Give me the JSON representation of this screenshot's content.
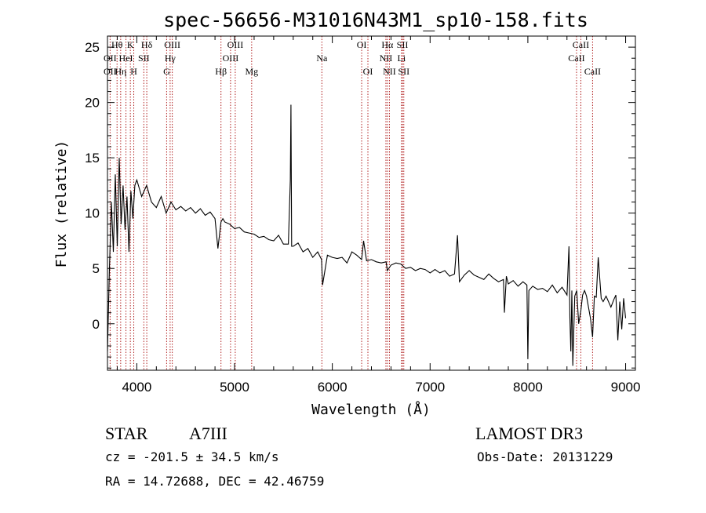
{
  "chart_data": {
    "type": "line",
    "title": "spec-56656-M31016N43M1_sp10-158.fits",
    "xlabel": "Wavelength (Å)",
    "ylabel": "Flux (relative)",
    "xlim": [
      3700,
      9100
    ],
    "ylim": [
      -4.2,
      26.0
    ],
    "xticks": [
      4000,
      5000,
      6000,
      7000,
      8000,
      9000
    ],
    "yticks": [
      0,
      5,
      10,
      15,
      20,
      25
    ],
    "spectrum": {
      "name": "flux",
      "color": "#000000",
      "x": [
        3700,
        3720,
        3740,
        3760,
        3780,
        3800,
        3820,
        3840,
        3860,
        3880,
        3900,
        3920,
        3940,
        3960,
        3980,
        4000,
        4050,
        4100,
        4150,
        4200,
        4250,
        4300,
        4350,
        4400,
        4450,
        4500,
        4550,
        4600,
        4650,
        4700,
        4750,
        4800,
        4830,
        4861,
        4880,
        4900,
        4950,
        5000,
        5050,
        5100,
        5150,
        5200,
        5250,
        5300,
        5350,
        5400,
        5450,
        5500,
        5550,
        5570,
        5577,
        5584,
        5600,
        5650,
        5700,
        5750,
        5800,
        5850,
        5890,
        5900,
        5950,
        6000,
        6050,
        6100,
        6150,
        6200,
        6250,
        6300,
        6320,
        6350,
        6400,
        6450,
        6500,
        6550,
        6563,
        6600,
        6650,
        6700,
        6750,
        6800,
        6850,
        6900,
        6950,
        7000,
        7050,
        7100,
        7150,
        7200,
        7250,
        7280,
        7300,
        7350,
        7400,
        7450,
        7500,
        7550,
        7600,
        7650,
        7700,
        7750,
        7760,
        7780,
        7800,
        7850,
        7900,
        7950,
        7990,
        8000,
        8010,
        8050,
        8100,
        8150,
        8200,
        8250,
        8300,
        8350,
        8400,
        8420,
        8430,
        8440,
        8450,
        8460,
        8480,
        8500,
        8520,
        8542,
        8560,
        8580,
        8600,
        8640,
        8662,
        8680,
        8700,
        8720,
        8750,
        8770,
        8800,
        8850,
        8880,
        8900,
        8920,
        8940,
        8960,
        8980,
        9000
      ],
      "y": [
        -2.5,
        5.0,
        11.0,
        6.5,
        13.5,
        7.0,
        15.0,
        9.0,
        12.5,
        8.5,
        11.5,
        6.5,
        12.0,
        9.5,
        12.5,
        13.0,
        11.5,
        12.5,
        11.0,
        10.5,
        11.5,
        10.0,
        11.0,
        10.3,
        10.6,
        10.2,
        10.5,
        10.0,
        10.4,
        9.8,
        10.1,
        9.5,
        6.8,
        9.2,
        9.5,
        9.2,
        9.0,
        8.6,
        8.7,
        8.3,
        8.2,
        8.1,
        7.8,
        7.9,
        7.6,
        7.5,
        8.0,
        7.2,
        7.2,
        13.0,
        19.8,
        7.0,
        7.0,
        7.3,
        6.5,
        6.8,
        6.0,
        6.5,
        5.8,
        3.5,
        6.2,
        6.0,
        5.9,
        6.0,
        5.5,
        6.5,
        6.2,
        5.8,
        7.5,
        5.7,
        5.8,
        5.6,
        5.5,
        5.6,
        4.8,
        5.3,
        5.5,
        5.4,
        5.0,
        5.1,
        4.8,
        5.0,
        4.9,
        4.6,
        4.9,
        4.6,
        4.8,
        4.3,
        4.5,
        8.0,
        3.8,
        4.4,
        4.8,
        4.4,
        4.2,
        4.0,
        4.5,
        4.1,
        3.8,
        4.0,
        1.0,
        4.3,
        3.6,
        3.9,
        3.4,
        3.8,
        3.5,
        -3.2,
        3.0,
        3.4,
        3.1,
        3.2,
        2.9,
        3.5,
        2.8,
        3.3,
        2.6,
        7.0,
        0.5,
        -2.5,
        3.0,
        -3.8,
        2.5,
        3.0,
        0.0,
        1.2,
        2.6,
        3.0,
        2.5,
        0.5,
        -1.2,
        2.5,
        2.4,
        6.0,
        2.3,
        2.0,
        2.5,
        1.5,
        2.2,
        2.6,
        -1.5,
        2.0,
        -0.5,
        2.3,
        0.5
      ]
    },
    "lines": [
      {
        "label": "Hθ",
        "wl": 3798,
        "row": 0
      },
      {
        "label": "OII",
        "wl": 3727,
        "row": 1
      },
      {
        "label": "OII",
        "wl": 3727,
        "row": 2
      },
      {
        "label": "HeI",
        "wl": 3889,
        "row": 1
      },
      {
        "label": "Hη",
        "wl": 3835,
        "row": 2
      },
      {
        "label": "K",
        "wl": 3934,
        "row": 0
      },
      {
        "label": "SII",
        "wl": 4072,
        "row": 1
      },
      {
        "label": "H",
        "wl": 3969,
        "row": 2
      },
      {
        "label": "Hδ",
        "wl": 4102,
        "row": 0
      },
      {
        "label": "OIII",
        "wl": 4363,
        "row": 0
      },
      {
        "label": "Hγ",
        "wl": 4341,
        "row": 1
      },
      {
        "label": "G",
        "wl": 4305,
        "row": 2
      },
      {
        "label": "OIII",
        "wl": 5007,
        "row": 0
      },
      {
        "label": "OIII",
        "wl": 4959,
        "row": 1
      },
      {
        "label": "Hβ",
        "wl": 4861,
        "row": 2
      },
      {
        "label": "Mg",
        "wl": 5175,
        "row": 2
      },
      {
        "label": "Na",
        "wl": 5893,
        "row": 1
      },
      {
        "label": "OI",
        "wl": 6300,
        "row": 0
      },
      {
        "label": "OI",
        "wl": 6364,
        "row": 2
      },
      {
        "label": "Hα",
        "wl": 6563,
        "row": 0
      },
      {
        "label": "NII",
        "wl": 6548,
        "row": 1
      },
      {
        "label": "NII",
        "wl": 6584,
        "row": 2
      },
      {
        "label": "SII",
        "wl": 6717,
        "row": 0
      },
      {
        "label": "Li",
        "wl": 6708,
        "row": 1
      },
      {
        "label": "SII",
        "wl": 6731,
        "row": 2
      },
      {
        "label": "CaII",
        "wl": 8542,
        "row": 0
      },
      {
        "label": "CaII",
        "wl": 8498,
        "row": 1
      },
      {
        "label": "CaII",
        "wl": 8662,
        "row": 2
      }
    ]
  },
  "info": {
    "object_class": "STAR",
    "subclass": "A7III",
    "survey": "LAMOST DR3",
    "cz": "cz = -201.5 ± 34.5 km/s",
    "obs_date": "Obs-Date: 20131229",
    "radec": "RA =  14.72688, DEC =  42.46759"
  },
  "colors": {
    "spectrum": "#000000",
    "line_markers": "#b22222",
    "axes": "#000000",
    "background": "#ffffff"
  }
}
